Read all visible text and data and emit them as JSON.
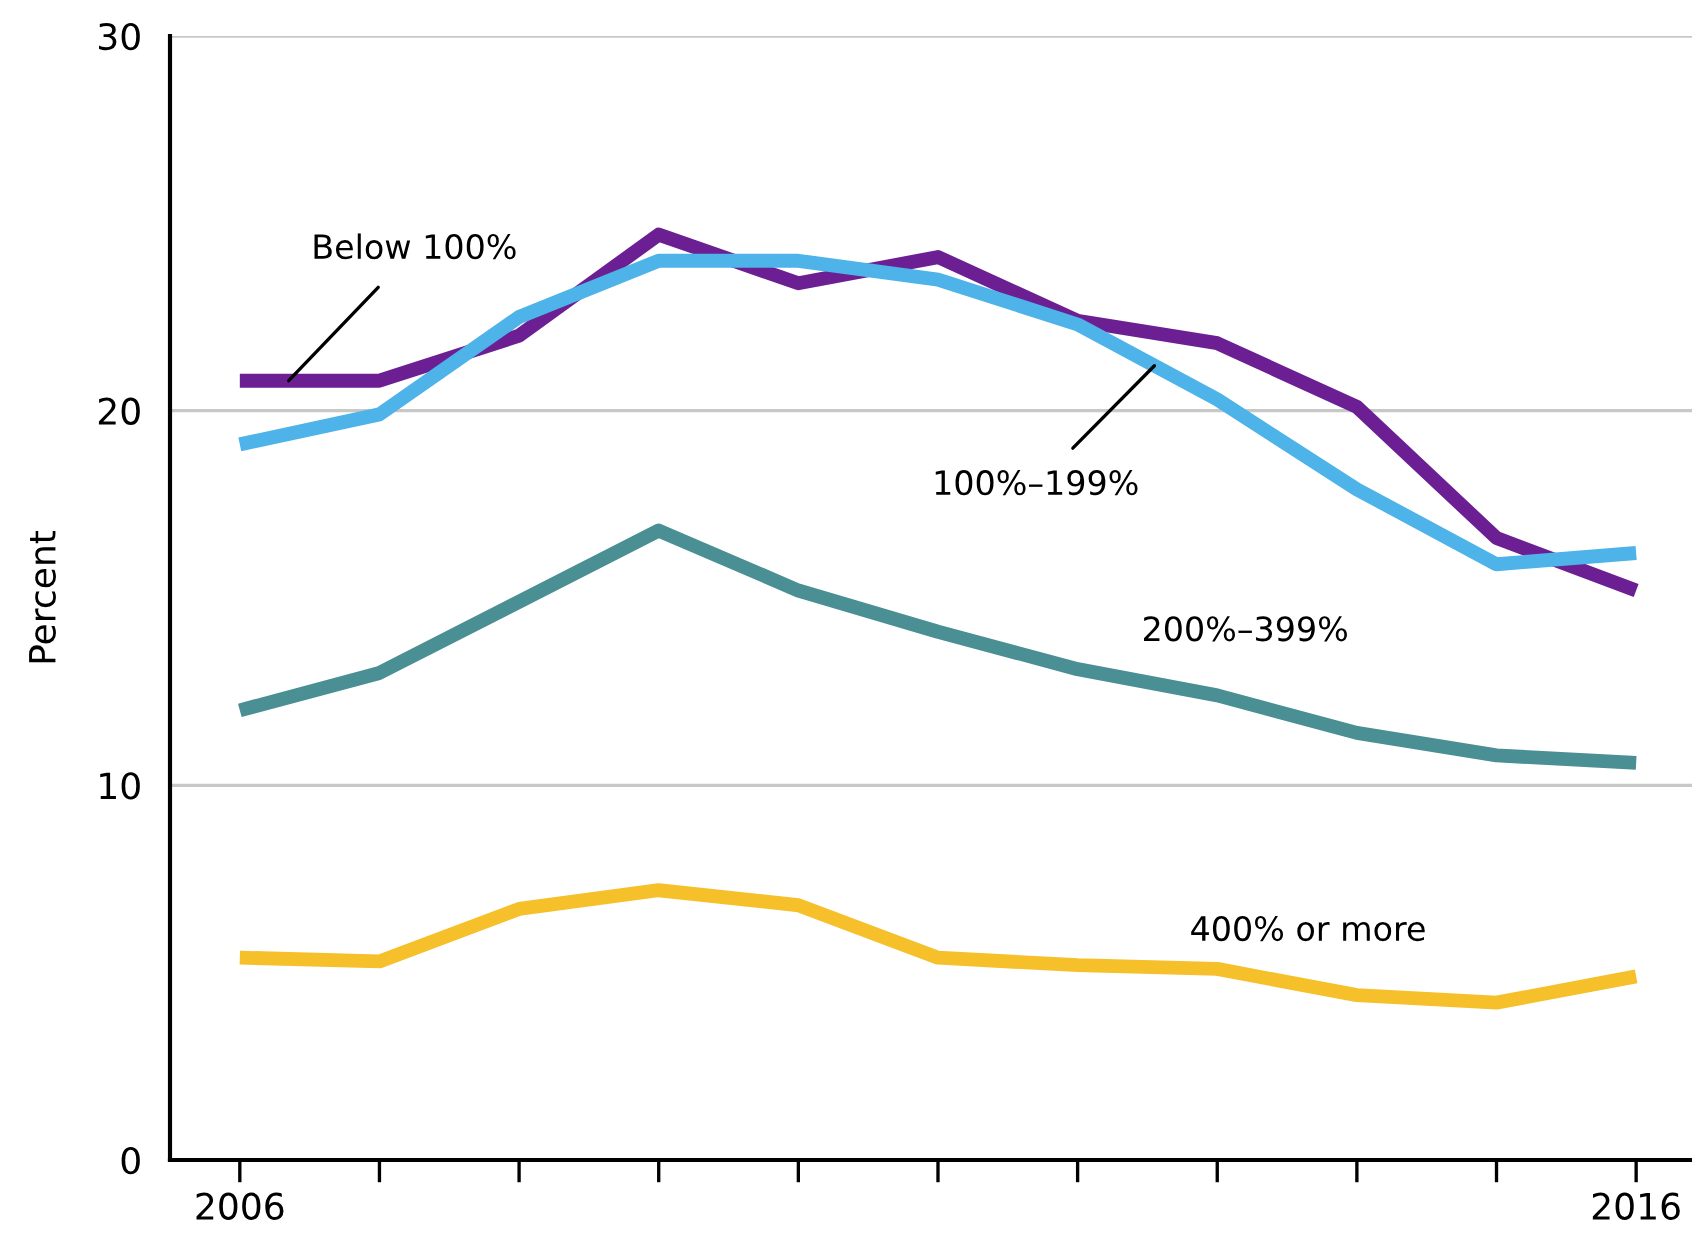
{
  "chart_data": {
    "type": "line",
    "ylabel": "Percent",
    "x": [
      2006,
      2007,
      2008,
      2009,
      2010,
      2011,
      2012,
      2013,
      2014,
      2015,
      2016
    ],
    "series": [
      {
        "name": "Below 100%",
        "color": "#6b1f93",
        "values": [
          20.8,
          20.8,
          22.0,
          24.7,
          23.4,
          24.1,
          22.4,
          21.8,
          20.1,
          16.6,
          15.2
        ]
      },
      {
        "name": "100%–199%",
        "color": "#4db3e8",
        "values": [
          19.1,
          19.9,
          22.5,
          24.0,
          24.0,
          23.5,
          22.3,
          20.3,
          17.9,
          15.9,
          16.2
        ]
      },
      {
        "name": "200%–399%",
        "color": "#4a8f94",
        "values": [
          12.0,
          13.0,
          14.9,
          16.8,
          15.2,
          14.1,
          13.1,
          12.4,
          11.4,
          10.8,
          10.6
        ]
      },
      {
        "name": "400% or more",
        "color": "#f6c02b",
        "values": [
          5.4,
          5.3,
          6.7,
          7.2,
          6.8,
          5.4,
          5.2,
          5.1,
          4.4,
          4.2,
          4.9
        ]
      }
    ],
    "xlim": [
      2005.5,
      2016.4
    ],
    "ylim": [
      0,
      30
    ],
    "xticks": [
      2006,
      {
        "value": 2007,
        "label": null
      },
      {
        "value": 2008,
        "label": null
      },
      {
        "value": 2009,
        "label": null
      },
      {
        "value": 2010,
        "label": null
      },
      {
        "value": 2011,
        "label": null
      },
      {
        "value": 2012,
        "label": null
      },
      {
        "value": 2013,
        "label": null
      },
      {
        "value": 2014,
        "label": null
      },
      {
        "value": 2015,
        "label": null
      },
      2016
    ],
    "yticks": [
      0,
      10,
      20,
      30
    ],
    "grid": "y",
    "legend": false,
    "marker": "none",
    "line_style": "solid"
  }
}
